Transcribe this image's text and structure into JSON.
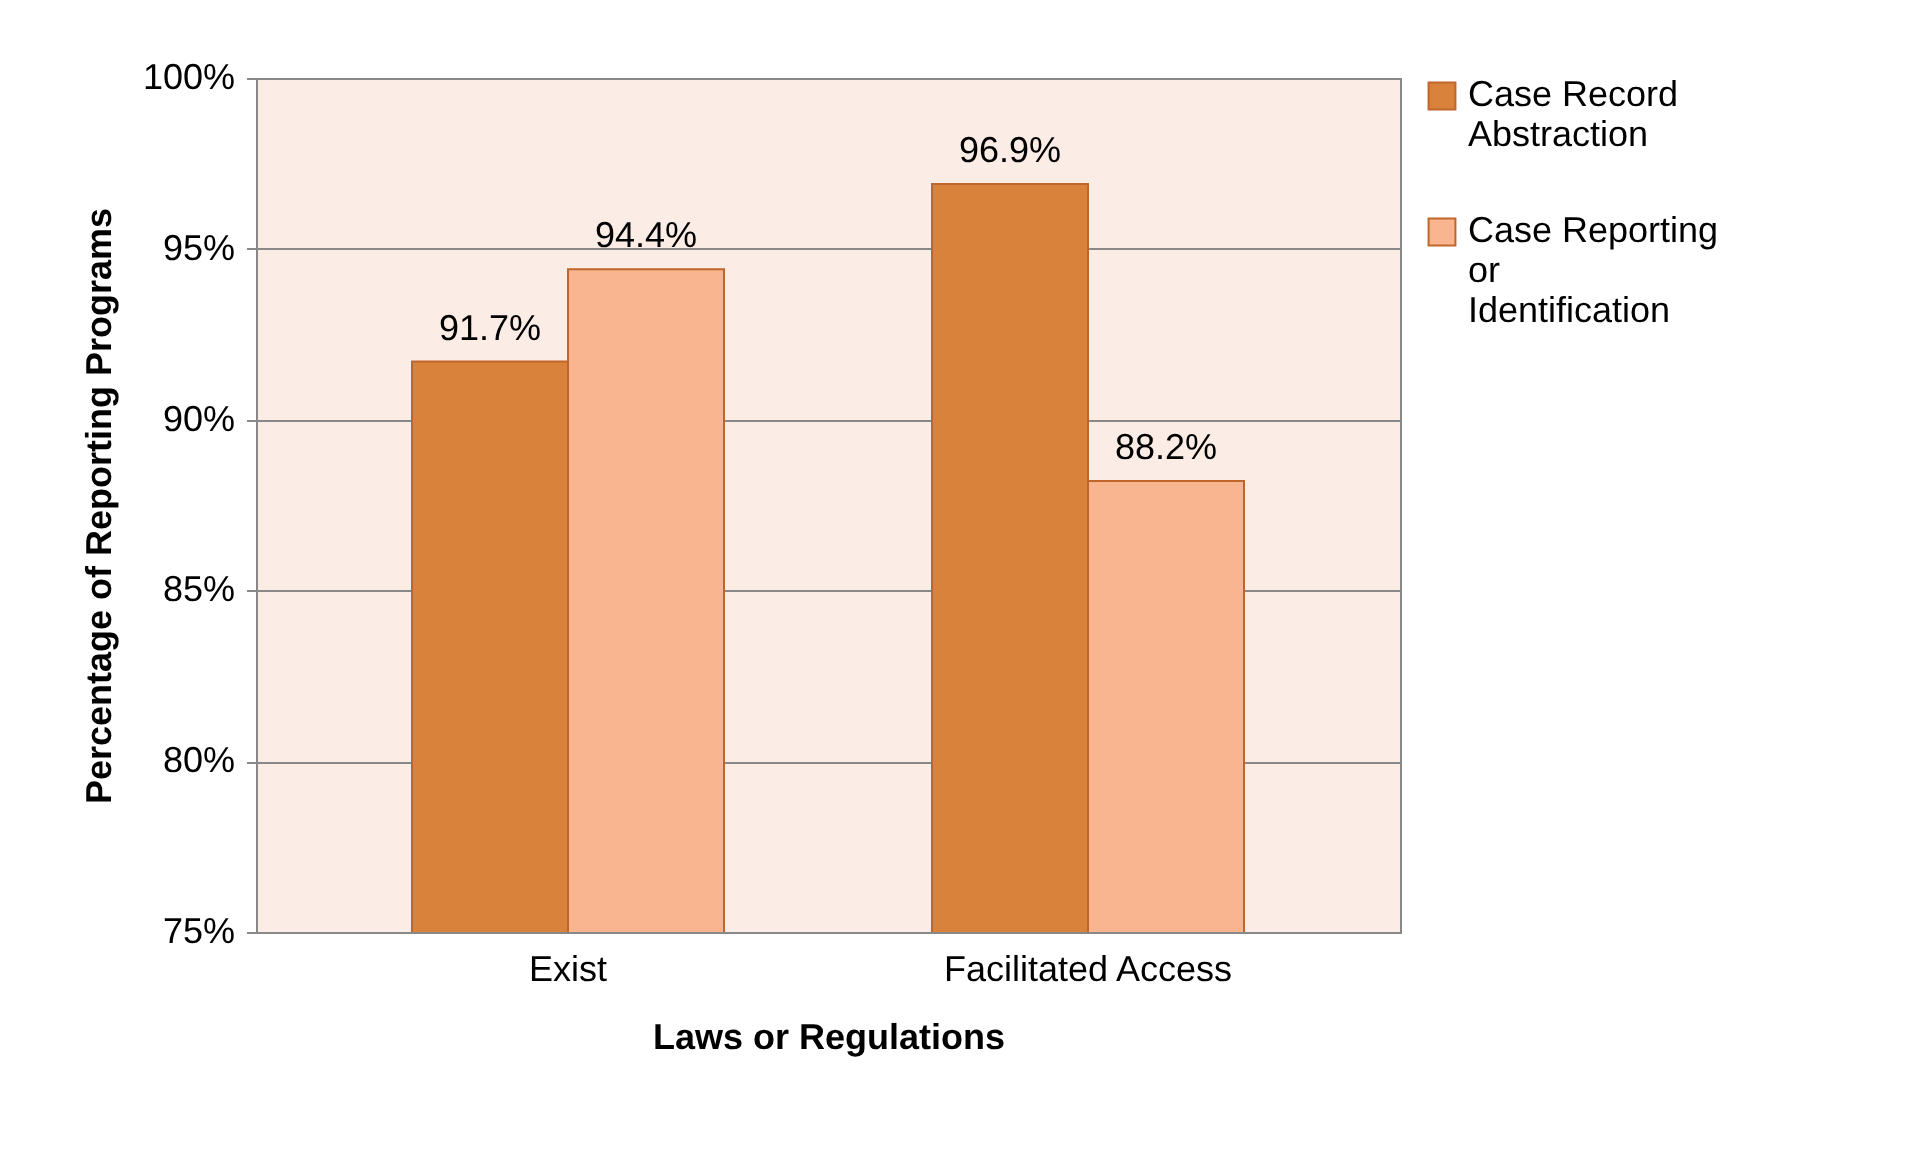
{
  "chart_data": {
    "type": "bar",
    "xlabel": "Laws or Regulations",
    "ylabel": "Percentage of Reporting Programs",
    "categories": [
      "Exist",
      "Facilitated Access"
    ],
    "series": [
      {
        "name": "Case Record Abstraction",
        "color": "#d9823b",
        "values": [
          91.7,
          96.9
        ]
      },
      {
        "name": "Case Reporting or Identification",
        "color": "#f9b590",
        "values": [
          94.4,
          88.2
        ]
      }
    ],
    "ylim": [
      75,
      100
    ],
    "yticks": [
      {
        "value": 75,
        "label": "75%"
      },
      {
        "value": 80,
        "label": "80%"
      },
      {
        "value": 85,
        "label": "85%"
      },
      {
        "value": 90,
        "label": "90%"
      },
      {
        "value": 95,
        "label": "95%"
      },
      {
        "value": 100,
        "label": "100%"
      }
    ],
    "grid": "y",
    "legend": "right",
    "value_labels": [
      [
        "91.7%",
        "96.9%"
      ],
      [
        "94.4%",
        "88.2%"
      ]
    ]
  }
}
